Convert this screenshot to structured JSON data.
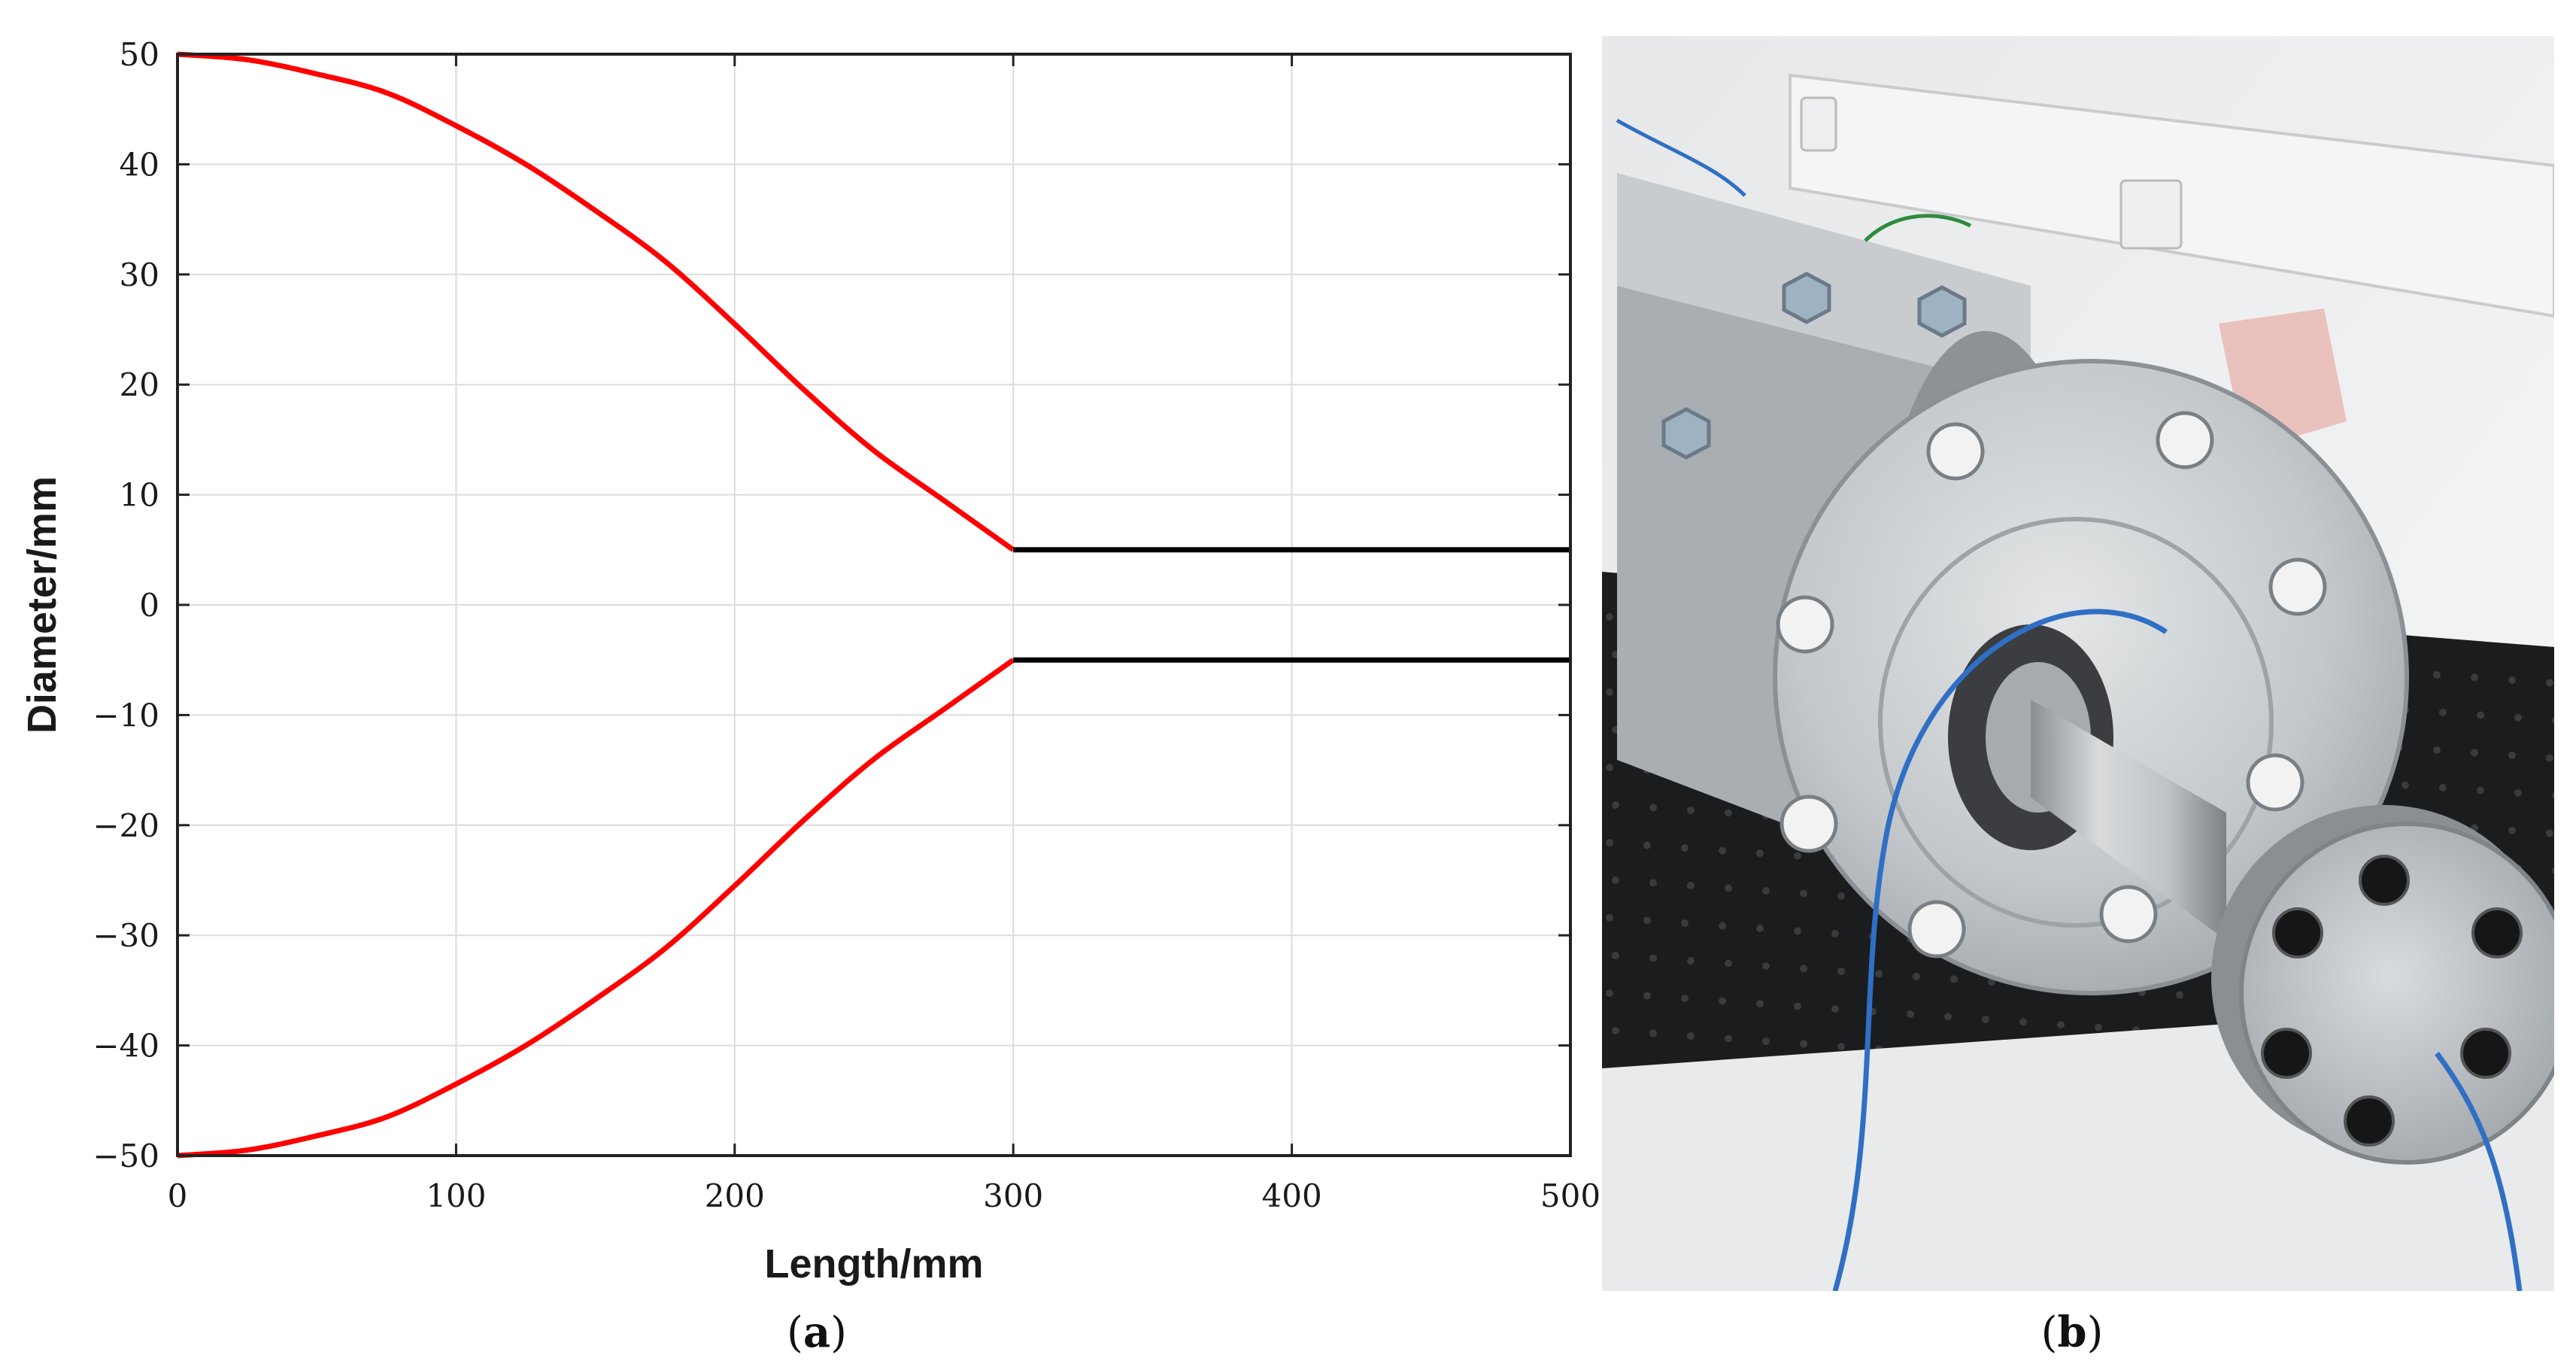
{
  "chart_data": {
    "type": "line",
    "xlabel": "Length/mm",
    "ylabel": "Diameter/mm",
    "xlim": [
      0,
      500
    ],
    "ylim": [
      -50,
      50
    ],
    "xticks": [
      0,
      100,
      200,
      300,
      400,
      500
    ],
    "yticks": [
      50,
      40,
      30,
      20,
      10,
      0,
      -10,
      -20,
      -30,
      -40,
      -50
    ],
    "ytick_labels": [
      "50",
      "40",
      "30",
      "20",
      "10",
      "0",
      "−10",
      "−20",
      "−30",
      "−40",
      "−50"
    ],
    "grid": true,
    "series": [
      {
        "color": "#ff0000",
        "x": [
          0,
          25,
          50,
          75,
          100,
          125,
          150,
          175,
          200,
          225,
          250,
          275,
          300
        ],
        "y": [
          50,
          49.5,
          48.2,
          46.5,
          43.5,
          40,
          35.8,
          31.2,
          25.5,
          19.5,
          14,
          9.5,
          5
        ]
      },
      {
        "color": "#ff0000",
        "x": [
          0,
          25,
          50,
          75,
          100,
          125,
          150,
          175,
          200,
          225,
          250,
          275,
          300
        ],
        "y": [
          -50,
          -49.5,
          -48.2,
          -46.5,
          -43.5,
          -40,
          -35.8,
          -31.2,
          -25.5,
          -19.5,
          -14,
          -9.5,
          -5
        ]
      },
      {
        "color": "#000000",
        "x": [
          300,
          500
        ],
        "y": [
          5,
          5
        ]
      },
      {
        "color": "#000000",
        "x": [
          300,
          500
        ],
        "y": [
          -5,
          -5
        ]
      }
    ]
  },
  "panels": {
    "a_letter": "a",
    "b_letter": "b"
  }
}
